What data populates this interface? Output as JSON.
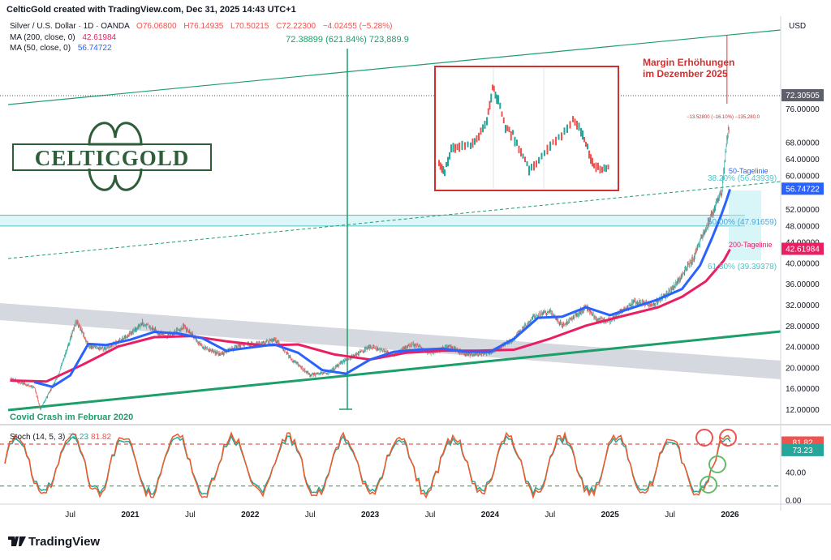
{
  "header": {
    "attribution": "CelticGold created with TradingView.com, Dec 31, 2025 14:43 UTC+1",
    "symbol": "Silver / U.S. Dollar · 1D · OANDA",
    "ohlc": {
      "open": "O76.06800",
      "high": "H76.14935",
      "low": "L70.50215",
      "close": "C72.22300",
      "change": "−4.02455 (−5.28%)"
    },
    "ma200_label": "MA (200, close, 0)",
    "ma200_value": "42.61984",
    "ma50_label": "MA (50, close, 0)",
    "ma50_value": "56.74722"
  },
  "footer": {
    "brand": "TradingView"
  },
  "logo": {
    "text": "CELTICGOLD"
  },
  "colors": {
    "candle_up": "#26a69a",
    "candle_down": "#ef5350",
    "ma50": "#2962ff",
    "ma200": "#e91e63",
    "channel": "#1e9e6a",
    "fib": "#4fc3c9",
    "stoch": "#26a69a",
    "stoch_signal": "#f0592a",
    "margin_text": "#d32f2f"
  },
  "chart_data": [
    {
      "type": "line",
      "title": "Silver / U.S. Dollar · 1D · OANDA",
      "y_axis_label": "USD",
      "y_ticks": [
        "12.00000",
        "16.00000",
        "20.00000",
        "24.00000",
        "28.00000",
        "32.00000",
        "36.00000",
        "40.00000",
        "44.00000",
        "48.00000",
        "52.00000",
        "60.00000",
        "64.00000",
        "68.00000",
        "76.00000",
        "80.00000"
      ],
      "x_ticks": [
        "Jul",
        "2021",
        "Jul",
        "2022",
        "Jul",
        "2023",
        "Jul",
        "2024",
        "Jul",
        "2025",
        "Jul",
        "2026"
      ],
      "price_x": [
        2020.0,
        2020.2,
        2020.25,
        2020.4,
        2020.55,
        2020.65,
        2020.8,
        2021.0,
        2021.1,
        2021.3,
        2021.45,
        2021.6,
        2021.75,
        2021.9,
        2022.1,
        2022.2,
        2022.35,
        2022.5,
        2022.65,
        2022.8,
        2023.0,
        2023.2,
        2023.35,
        2023.5,
        2023.65,
        2023.8,
        2024.0,
        2024.2,
        2024.35,
        2024.5,
        2024.6,
        2024.8,
        2024.9,
        2025.0,
        2025.2,
        2025.35,
        2025.5,
        2025.6,
        2025.7,
        2025.8,
        2025.88,
        2025.93,
        2025.97,
        2025.995
      ],
      "price_y": [
        17.8,
        16.2,
        12.0,
        18.5,
        29.0,
        24.2,
        23.5,
        26.5,
        28.5,
        26.0,
        27.8,
        24.0,
        22.5,
        24.2,
        24.5,
        25.5,
        21.5,
        18.5,
        19.0,
        21.5,
        24.0,
        22.5,
        24.5,
        22.8,
        24.0,
        22.5,
        22.8,
        25.5,
        29.5,
        30.8,
        28.0,
        31.5,
        29.0,
        29.0,
        32.5,
        32.0,
        34.5,
        37.5,
        41.0,
        47.5,
        53.0,
        56.0,
        68.0,
        72.2
      ],
      "ma50_x": [
        2020.2,
        2020.35,
        2020.5,
        2020.65,
        2020.8,
        2021.0,
        2021.2,
        2021.4,
        2021.6,
        2021.8,
        2022.0,
        2022.2,
        2022.4,
        2022.6,
        2022.8,
        2023.0,
        2023.2,
        2023.4,
        2023.6,
        2023.8,
        2024.0,
        2024.2,
        2024.4,
        2024.6,
        2024.8,
        2025.0,
        2025.2,
        2025.4,
        2025.6,
        2025.75,
        2025.85,
        2025.92,
        2025.97,
        2026.0
      ],
      "ma50_y": [
        17.2,
        16.3,
        18.5,
        24.5,
        24.3,
        25.3,
        26.8,
        26.5,
        25.6,
        23.2,
        23.8,
        24.4,
        22.8,
        19.5,
        18.8,
        21.5,
        23.0,
        23.4,
        23.6,
        23.0,
        23.0,
        25.5,
        29.5,
        29.7,
        31.5,
        30.0,
        31.5,
        33.0,
        35.0,
        39.5,
        45.0,
        50.0,
        54.0,
        56.7
      ],
      "ma200_x": [
        2020.0,
        2020.3,
        2020.6,
        2020.9,
        2021.2,
        2021.5,
        2021.8,
        2022.1,
        2022.4,
        2022.7,
        2023.0,
        2023.3,
        2023.6,
        2023.9,
        2024.2,
        2024.5,
        2024.8,
        2025.1,
        2025.4,
        2025.6,
        2025.8,
        2025.95,
        2026.0
      ],
      "ma200_y": [
        17.5,
        17.3,
        20.5,
        24.0,
        25.8,
        26.0,
        25.0,
        24.2,
        24.4,
        22.5,
        21.5,
        22.8,
        23.2,
        23.2,
        23.4,
        25.5,
        28.0,
        29.8,
        31.5,
        33.5,
        36.5,
        40.5,
        42.6
      ],
      "last_price": "72.30505",
      "ma50_last": "56.74722",
      "ma200_last": "42.61984",
      "annotations": {
        "measure": "72.38899 (621.84%) 723,889.9",
        "margin": [
          "Margin Erhöhungen",
          "im Dezember 2025"
        ],
        "drop": "−13.52800 (−16.10%) −135,280.0",
        "ma50_label": "50-Tagelinie",
        "ma200_label": "200-Tagelinie",
        "fib_382": "38.20% (56.43939)",
        "fib_50": "50.00% (47.91659)",
        "fib_618": "61.80% (39.39378)",
        "covid": "Covid Crash im Februar 2020"
      }
    },
    {
      "type": "line",
      "title": "Stoch (14, 5, 3)",
      "k_value": "73.23",
      "d_value": "81.82",
      "y_ticks": [
        "40.00",
        "0.00"
      ],
      "levels": [
        80,
        20
      ]
    }
  ]
}
